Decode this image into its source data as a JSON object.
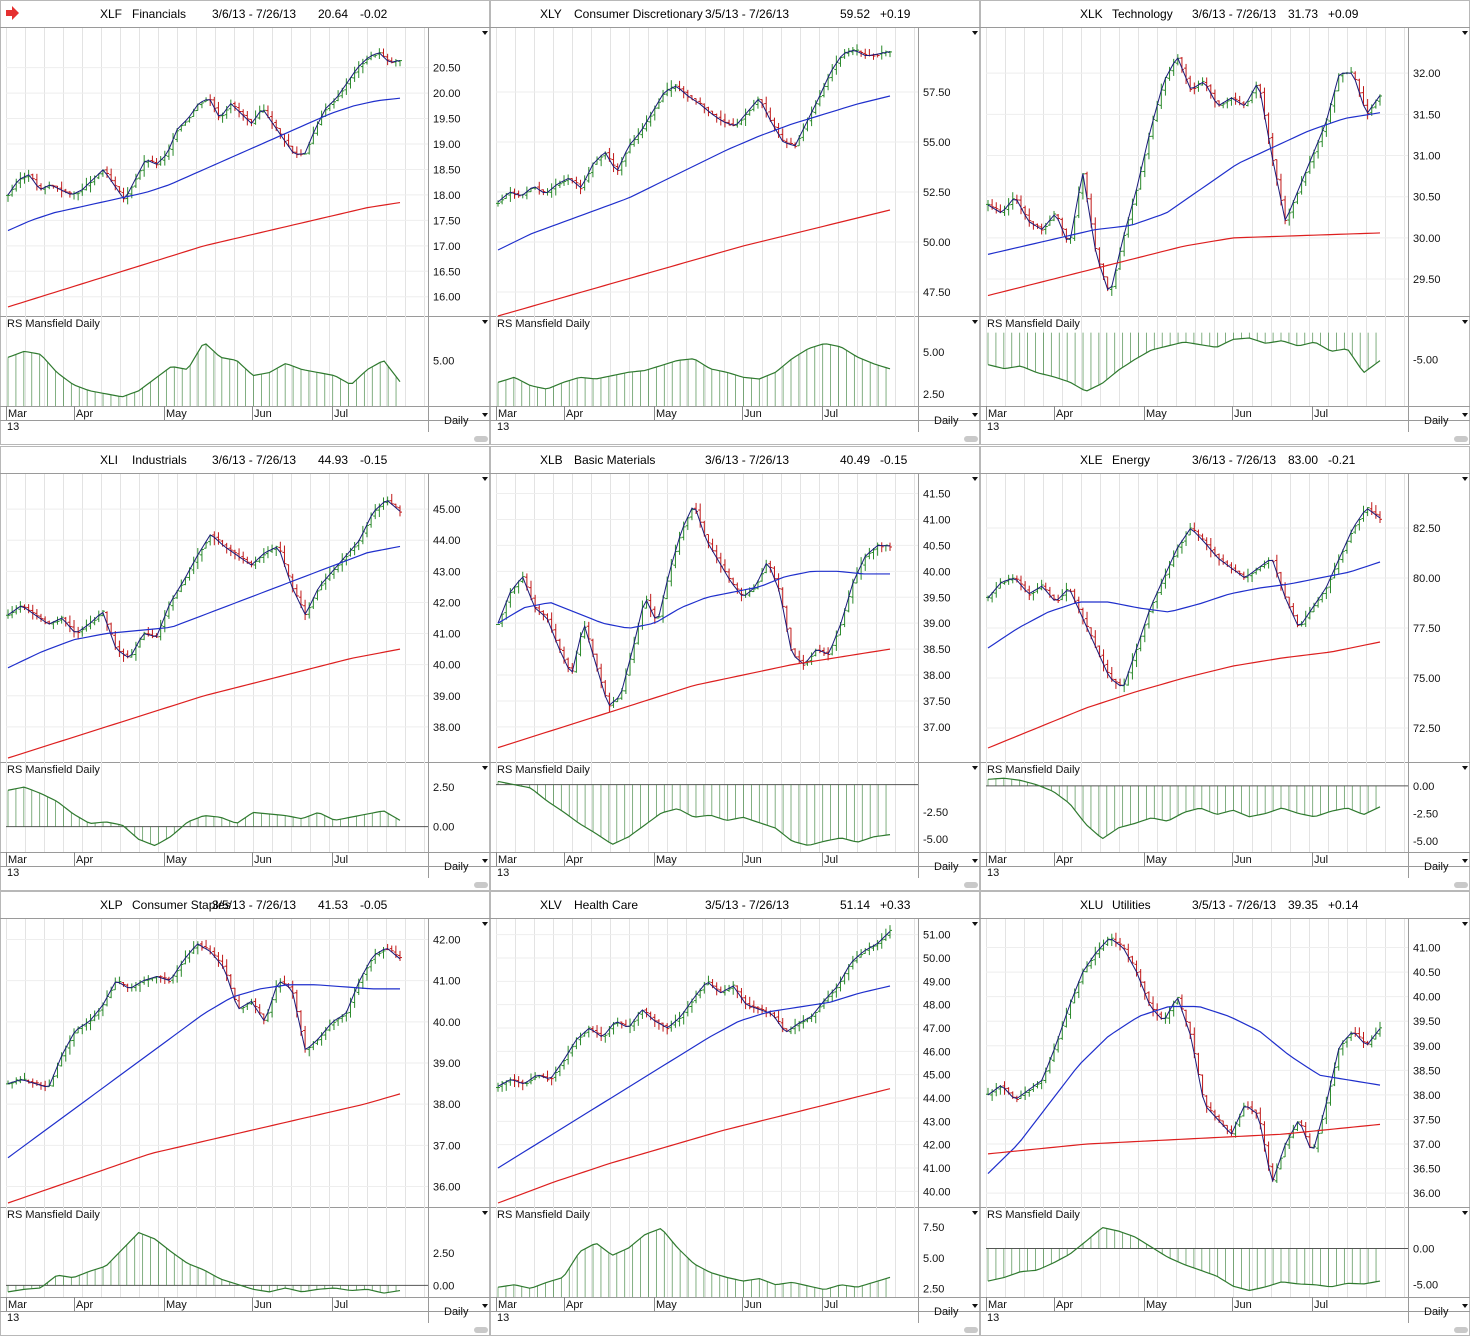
{
  "toolbar": {
    "flag_icon": "red-arrow-icon"
  },
  "colors": {
    "price_up": "#2a8a2a",
    "price_down": "#c01818",
    "ma_short": "#1f2fcc",
    "ma_long": "#dd1f1f",
    "rs": "#2f7a2f",
    "grid": "#e3e3e3"
  },
  "chart_data": [
    {
      "type": "line",
      "symbol": "XLF",
      "name": "Financials",
      "range": "3/6/13 - 7/26/13",
      "last": "20.64",
      "change": "-0.02",
      "ylim": [
        15.7,
        21.2
      ],
      "yticks": [
        "20.50",
        "20.00",
        "19.50",
        "19.00",
        "18.50",
        "18.00",
        "17.50",
        "17.00",
        "16.50",
        "16.00"
      ],
      "price": [
        18.0,
        18.3,
        18.4,
        18.1,
        18.2,
        18.1,
        18.0,
        18.1,
        18.3,
        18.5,
        18.2,
        17.9,
        18.3,
        18.7,
        18.6,
        18.8,
        19.3,
        19.5,
        19.8,
        19.9,
        19.5,
        19.8,
        19.6,
        19.4,
        19.7,
        19.4,
        19.1,
        18.8,
        18.8,
        19.3,
        19.7,
        19.9,
        20.2,
        20.5,
        20.7,
        20.8,
        20.6,
        20.64
      ],
      "ma50": [
        17.3,
        17.5,
        17.65,
        17.75,
        17.85,
        17.95,
        18.05,
        18.2,
        18.4,
        18.6,
        18.8,
        19.0,
        19.2,
        19.4,
        19.6,
        19.75,
        19.85,
        19.9
      ],
      "ma200": [
        15.8,
        16.0,
        16.2,
        16.4,
        16.6,
        16.8,
        17.0,
        17.15,
        17.3,
        17.45,
        17.6,
        17.75,
        17.85
      ],
      "rs_label": "RS Mansfield Daily",
      "rs_ylim": [
        3.5,
        6.0
      ],
      "rs_yticks": [
        "5.00"
      ],
      "rs_base": 3.5,
      "rs": [
        5.1,
        5.3,
        5.2,
        4.6,
        4.2,
        4.0,
        3.9,
        3.8,
        4.0,
        4.4,
        4.8,
        4.7,
        5.6,
        5.1,
        5.0,
        4.5,
        4.6,
        4.9,
        4.7,
        4.6,
        4.5,
        4.2,
        4.7,
        5.0,
        4.3
      ],
      "months": [
        "Mar",
        "Apr",
        "May",
        "Jun",
        "Jul"
      ],
      "year": "13",
      "period": "Daily"
    },
    {
      "type": "line",
      "symbol": "XLY",
      "name": "Consumer Discretionary",
      "range": "3/5/13 - 7/26/13",
      "last": "59.52",
      "change": "+0.19",
      "ylim": [
        46.5,
        60.5
      ],
      "yticks": [
        "57.50",
        "55.00",
        "52.50",
        "50.00",
        "47.50"
      ],
      "price": [
        52.0,
        52.5,
        52.3,
        52.8,
        52.4,
        52.9,
        53.2,
        52.7,
        53.9,
        54.5,
        53.5,
        54.8,
        55.5,
        56.5,
        57.5,
        57.8,
        57.3,
        56.9,
        56.4,
        56.0,
        55.8,
        56.5,
        57.2,
        56.0,
        55.0,
        54.8,
        56.0,
        57.2,
        58.5,
        59.4,
        59.6,
        59.3,
        59.4,
        59.52
      ],
      "ma50": [
        49.6,
        50.4,
        51.0,
        51.6,
        52.2,
        53.0,
        53.8,
        54.6,
        55.3,
        55.9,
        56.4,
        56.9,
        57.3
      ],
      "ma200": [
        46.3,
        47.0,
        47.7,
        48.4,
        49.1,
        49.8,
        50.4,
        51.0,
        51.6
      ],
      "rs_label": "RS Mansfield Daily",
      "rs_ylim": [
        1.8,
        6.3
      ],
      "rs_yticks": [
        "5.00",
        "2.50"
      ],
      "rs_base": 1.8,
      "rs": [
        3.2,
        3.5,
        3.0,
        2.8,
        3.2,
        3.5,
        3.4,
        3.6,
        3.8,
        3.9,
        4.2,
        4.5,
        4.6,
        4.0,
        3.8,
        3.5,
        3.4,
        3.8,
        4.6,
        5.2,
        5.5,
        5.3,
        4.7,
        4.3,
        4.0
      ],
      "months": [
        "Mar",
        "Apr",
        "May",
        "Jun",
        "Jul"
      ],
      "year": "13",
      "period": "Daily"
    },
    {
      "type": "line",
      "symbol": "XLK",
      "name": "Technology",
      "range": "3/6/13 - 7/26/13",
      "last": "31.73",
      "change": "+0.09",
      "ylim": [
        29.1,
        32.5
      ],
      "yticks": [
        "32.00",
        "31.50",
        "31.00",
        "30.50",
        "30.00",
        "29.50"
      ],
      "price": [
        30.4,
        30.3,
        30.5,
        30.2,
        30.1,
        30.3,
        29.9,
        30.8,
        29.8,
        29.3,
        30.0,
        30.6,
        31.3,
        31.9,
        32.2,
        31.8,
        31.9,
        31.6,
        31.7,
        31.6,
        31.9,
        31.0,
        30.2,
        30.6,
        31.0,
        31.4,
        32.0,
        32.0,
        31.5,
        31.73
      ],
      "ma50": [
        29.8,
        29.9,
        30.0,
        30.1,
        30.15,
        30.3,
        30.6,
        30.9,
        31.1,
        31.3,
        31.45,
        31.52
      ],
      "ma200": [
        29.3,
        29.45,
        29.6,
        29.75,
        29.9,
        30.0,
        30.02,
        30.04,
        30.06
      ],
      "rs_label": "RS Mansfield Daily",
      "rs_ylim": [
        -8.5,
        -2.8
      ],
      "rs_yticks": [
        "-5.00"
      ],
      "rs_base": -3.0,
      "rs": [
        -5.4,
        -5.7,
        -5.5,
        -6.0,
        -6.3,
        -6.7,
        -7.4,
        -6.8,
        -5.8,
        -5.0,
        -4.3,
        -4.0,
        -3.7,
        -3.9,
        -4.1,
        -3.5,
        -3.4,
        -3.8,
        -3.6,
        -4.0,
        -3.7,
        -4.4,
        -4.2,
        -6.0,
        -5.1
      ],
      "months": [
        "Mar",
        "Apr",
        "May",
        "Jun",
        "Jul"
      ],
      "year": "13",
      "period": "Daily"
    },
    {
      "type": "line",
      "symbol": "XLI",
      "name": "Industrials",
      "range": "3/6/13 - 7/26/13",
      "last": "44.93",
      "change": "-0.15",
      "ylim": [
        37.0,
        46.0
      ],
      "yticks": [
        "45.00",
        "44.00",
        "43.00",
        "42.00",
        "41.00",
        "40.00",
        "39.00",
        "38.00"
      ],
      "price": [
        41.6,
        41.9,
        41.6,
        41.3,
        41.5,
        41.0,
        41.3,
        41.7,
        40.5,
        40.2,
        41.0,
        40.9,
        42.0,
        42.7,
        43.5,
        44.2,
        43.8,
        43.5,
        43.2,
        43.6,
        43.8,
        42.5,
        41.6,
        42.5,
        43.0,
        43.5,
        44.0,
        44.9,
        45.3,
        44.93
      ],
      "ma50": [
        39.9,
        40.4,
        40.8,
        41.0,
        41.1,
        41.2,
        41.6,
        42.0,
        42.4,
        42.8,
        43.2,
        43.6,
        43.8
      ],
      "ma200": [
        37.0,
        37.5,
        38.0,
        38.5,
        39.0,
        39.4,
        39.8,
        40.2,
        40.5
      ],
      "rs_label": "RS Mansfield Daily",
      "rs_ylim": [
        -1.6,
        3.2
      ],
      "rs_yticks": [
        "2.50",
        "0.00"
      ],
      "rs_base": 0.0,
      "rs": [
        2.3,
        2.5,
        2.1,
        1.6,
        0.8,
        0.2,
        0.3,
        0.1,
        -0.8,
        -1.2,
        -0.6,
        0.3,
        0.7,
        0.6,
        0.2,
        0.9,
        0.8,
        0.7,
        0.5,
        0.9,
        0.4,
        0.6,
        0.8,
        1.0,
        0.4
      ],
      "months": [
        "Mar",
        "Apr",
        "May",
        "Jun",
        "Jul"
      ],
      "year": "13",
      "period": "Daily"
    },
    {
      "type": "line",
      "symbol": "XLB",
      "name": "Basic Materials",
      "range": "3/6/13 - 7/26/13",
      "last": "40.49",
      "change": "-0.15",
      "ylim": [
        36.4,
        41.8
      ],
      "yticks": [
        "41.50",
        "41.00",
        "40.50",
        "40.00",
        "39.50",
        "39.00",
        "38.50",
        "38.00",
        "37.50",
        "37.00"
      ],
      "price": [
        39.0,
        39.6,
        39.9,
        39.3,
        39.1,
        38.5,
        38.0,
        39.0,
        38.2,
        37.4,
        37.6,
        38.5,
        39.5,
        39.0,
        40.0,
        40.8,
        41.3,
        40.6,
        40.2,
        39.8,
        39.5,
        39.7,
        40.2,
        39.6,
        38.4,
        38.2,
        38.5,
        38.4,
        39.0,
        39.8,
        40.3,
        40.5,
        40.49
      ],
      "ma50": [
        39.0,
        39.3,
        39.4,
        39.2,
        39.0,
        38.9,
        39.0,
        39.3,
        39.5,
        39.6,
        39.7,
        39.9,
        40.0,
        40.0,
        39.95,
        39.95
      ],
      "ma200": [
        36.6,
        36.9,
        37.2,
        37.5,
        37.8,
        38.0,
        38.2,
        38.35,
        38.5
      ],
      "rs_label": "RS Mansfield Daily",
      "rs_ylim": [
        -6.2,
        0.8
      ],
      "rs_yticks": [
        "-2.50",
        "-5.00"
      ],
      "rs_base": 0.0,
      "rs": [
        0.3,
        0.0,
        -0.3,
        -1.5,
        -2.5,
        -3.6,
        -4.5,
        -5.5,
        -4.8,
        -3.7,
        -2.6,
        -2.2,
        -3.0,
        -2.8,
        -3.3,
        -3.0,
        -3.5,
        -4.0,
        -5.2,
        -5.6,
        -5.2,
        -4.9,
        -5.3,
        -4.8,
        -4.6
      ],
      "months": [
        "Mar",
        "Apr",
        "May",
        "Jun",
        "Jul"
      ],
      "year": "13",
      "period": "Daily"
    },
    {
      "type": "line",
      "symbol": "XLE",
      "name": "Energy",
      "range": "3/6/13 - 7/26/13",
      "last": "83.00",
      "change": "-0.21",
      "ylim": [
        71.0,
        85.0
      ],
      "yticks": [
        "82.50",
        "80.00",
        "77.50",
        "75.00",
        "72.50"
      ],
      "price": [
        79.0,
        79.8,
        80.0,
        79.2,
        79.6,
        78.8,
        79.5,
        78.0,
        76.5,
        75.0,
        74.5,
        76.5,
        78.5,
        80.0,
        81.5,
        82.5,
        81.8,
        81.0,
        80.5,
        80.0,
        80.5,
        81.0,
        79.0,
        77.5,
        78.5,
        79.5,
        81.0,
        82.5,
        83.5,
        83.0
      ],
      "ma50": [
        76.5,
        77.5,
        78.3,
        78.8,
        78.8,
        78.5,
        78.3,
        78.7,
        79.2,
        79.5,
        79.7,
        80.0,
        80.3,
        80.8
      ],
      "ma200": [
        71.5,
        72.5,
        73.5,
        74.3,
        75.0,
        75.6,
        76.0,
        76.3,
        76.8
      ],
      "rs_label": "RS Mansfield Daily",
      "rs_ylim": [
        -6.0,
        0.9
      ],
      "rs_yticks": [
        "0.00",
        "-2.50",
        "-5.00"
      ],
      "rs_base": 0.0,
      "rs": [
        0.6,
        0.7,
        0.5,
        0.1,
        -0.5,
        -1.6,
        -3.5,
        -4.8,
        -3.8,
        -3.4,
        -2.9,
        -3.2,
        -2.4,
        -2.0,
        -2.6,
        -2.2,
        -2.8,
        -2.5,
        -2.0,
        -2.5,
        -2.8,
        -2.3,
        -2.0,
        -2.6,
        -1.9
      ],
      "months": [
        "Mar",
        "Apr",
        "May",
        "Jun",
        "Jul"
      ],
      "year": "13",
      "period": "Daily"
    },
    {
      "type": "line",
      "symbol": "XLP",
      "name": "Consumer Staples",
      "range": "3/5/13 - 7/26/13",
      "last": "41.53",
      "change": "-0.05",
      "ylim": [
        35.6,
        42.4
      ],
      "yticks": [
        "42.00",
        "41.00",
        "40.00",
        "39.00",
        "38.00",
        "37.00",
        "36.00"
      ],
      "price": [
        38.5,
        38.6,
        38.5,
        38.4,
        39.2,
        39.8,
        40.0,
        40.4,
        41.0,
        40.8,
        41.0,
        41.1,
        41.0,
        41.5,
        41.9,
        41.7,
        41.3,
        40.3,
        40.5,
        40.0,
        41.0,
        40.8,
        39.3,
        39.6,
        40.0,
        40.2,
        41.0,
        41.6,
        41.8,
        41.53
      ],
      "ma50": [
        36.7,
        37.2,
        37.7,
        38.2,
        38.7,
        39.2,
        39.7,
        40.2,
        40.6,
        40.8,
        40.9,
        40.9,
        40.85,
        40.8,
        40.8
      ],
      "ma200": [
        35.6,
        35.9,
        36.2,
        36.5,
        36.8,
        37.0,
        37.2,
        37.4,
        37.6,
        37.8,
        38.0,
        38.25
      ],
      "rs_label": "RS Mansfield Daily",
      "rs_ylim": [
        -0.9,
        5.0
      ],
      "rs_yticks": [
        "2.50",
        "0.00"
      ],
      "rs_base": 0.0,
      "rs": [
        -0.5,
        -0.3,
        -0.2,
        0.8,
        0.6,
        1.1,
        1.5,
        2.8,
        4.1,
        3.6,
        2.6,
        1.7,
        1.2,
        0.5,
        0.1,
        -0.3,
        -0.5,
        -0.2,
        -0.5,
        -0.3,
        -0.2,
        -0.4,
        -0.3,
        -0.6,
        -0.4
      ],
      "months": [
        "Mar",
        "Apr",
        "May",
        "Jun",
        "Jul"
      ],
      "year": "13",
      "period": "Daily"
    },
    {
      "type": "line",
      "symbol": "XLV",
      "name": "Health Care",
      "range": "3/5/13 - 7/26/13",
      "last": "51.14",
      "change": "+0.33",
      "ylim": [
        39.5,
        51.5
      ],
      "yticks": [
        "51.00",
        "50.00",
        "49.00",
        "48.00",
        "47.00",
        "46.00",
        "45.00",
        "44.00",
        "43.00",
        "42.00",
        "41.00",
        "40.00"
      ],
      "price": [
        44.5,
        44.8,
        44.6,
        45.0,
        44.8,
        45.6,
        46.5,
        47.0,
        46.6,
        47.3,
        47.0,
        47.8,
        47.3,
        47.0,
        47.5,
        48.3,
        49.0,
        48.5,
        48.8,
        48.0,
        47.8,
        47.6,
        46.8,
        47.2,
        47.5,
        48.2,
        48.8,
        49.8,
        50.3,
        50.6,
        51.14
      ],
      "ma50": [
        41.0,
        41.8,
        42.6,
        43.4,
        44.2,
        45.0,
        45.8,
        46.6,
        47.3,
        47.7,
        47.9,
        48.1,
        48.5,
        48.8
      ],
      "ma200": [
        39.5,
        40.4,
        41.2,
        41.9,
        42.6,
        43.2,
        43.8,
        44.4
      ],
      "rs_label": "RS Mansfield Daily",
      "rs_ylim": [
        1.8,
        8.0
      ],
      "rs_yticks": [
        "7.50",
        "5.00",
        "2.50"
      ],
      "rs_base": 1.8,
      "rs": [
        2.6,
        2.8,
        2.5,
        3.0,
        3.4,
        5.5,
        6.2,
        5.2,
        5.8,
        6.9,
        7.4,
        5.8,
        4.5,
        3.8,
        3.4,
        3.1,
        3.3,
        2.8,
        3.0,
        2.7,
        2.4,
        2.8,
        2.6,
        3.0,
        3.4
      ],
      "months": [
        "Mar",
        "Apr",
        "May",
        "Jun",
        "Jul"
      ],
      "year": "13",
      "period": "Daily"
    },
    {
      "type": "line",
      "symbol": "XLU",
      "name": "Utilities",
      "range": "3/5/13 - 7/26/13",
      "last": "39.35",
      "change": "+0.14",
      "ylim": [
        35.8,
        41.5
      ],
      "yticks": [
        "41.00",
        "40.50",
        "40.00",
        "39.50",
        "39.00",
        "38.50",
        "38.00",
        "37.50",
        "37.00",
        "36.50",
        "36.00"
      ],
      "price": [
        38.0,
        38.2,
        37.9,
        38.1,
        38.3,
        39.0,
        39.8,
        40.5,
        40.9,
        41.2,
        41.0,
        40.5,
        39.8,
        39.5,
        40.0,
        39.2,
        37.8,
        37.5,
        37.2,
        37.8,
        37.6,
        36.2,
        37.0,
        37.5,
        36.8,
        37.8,
        39.0,
        39.3,
        39.0,
        39.35
      ],
      "ma50": [
        36.4,
        37.0,
        37.8,
        38.6,
        39.2,
        39.6,
        39.8,
        39.8,
        39.6,
        39.3,
        38.8,
        38.4,
        38.3,
        38.2
      ],
      "ma200": [
        36.8,
        36.9,
        37.0,
        37.05,
        37.1,
        37.15,
        37.2,
        37.3,
        37.4
      ],
      "rs_label": "RS Mansfield Daily",
      "rs_ylim": [
        -6.7,
        3.8
      ],
      "rs_yticks": [
        "0.00",
        "-5.00"
      ],
      "rs_base": 0.0,
      "rs": [
        -4.5,
        -4.0,
        -3.2,
        -3.0,
        -2.0,
        -0.8,
        1.0,
        2.9,
        2.4,
        1.6,
        0.2,
        -1.2,
        -2.2,
        -3.0,
        -3.8,
        -5.2,
        -5.8,
        -5.3,
        -4.6,
        -4.9,
        -5.0,
        -5.3,
        -4.8,
        -4.9,
        -4.5
      ],
      "months": [
        "Mar",
        "Apr",
        "May",
        "Jun",
        "Jul"
      ],
      "year": "13",
      "period": "Daily"
    }
  ]
}
